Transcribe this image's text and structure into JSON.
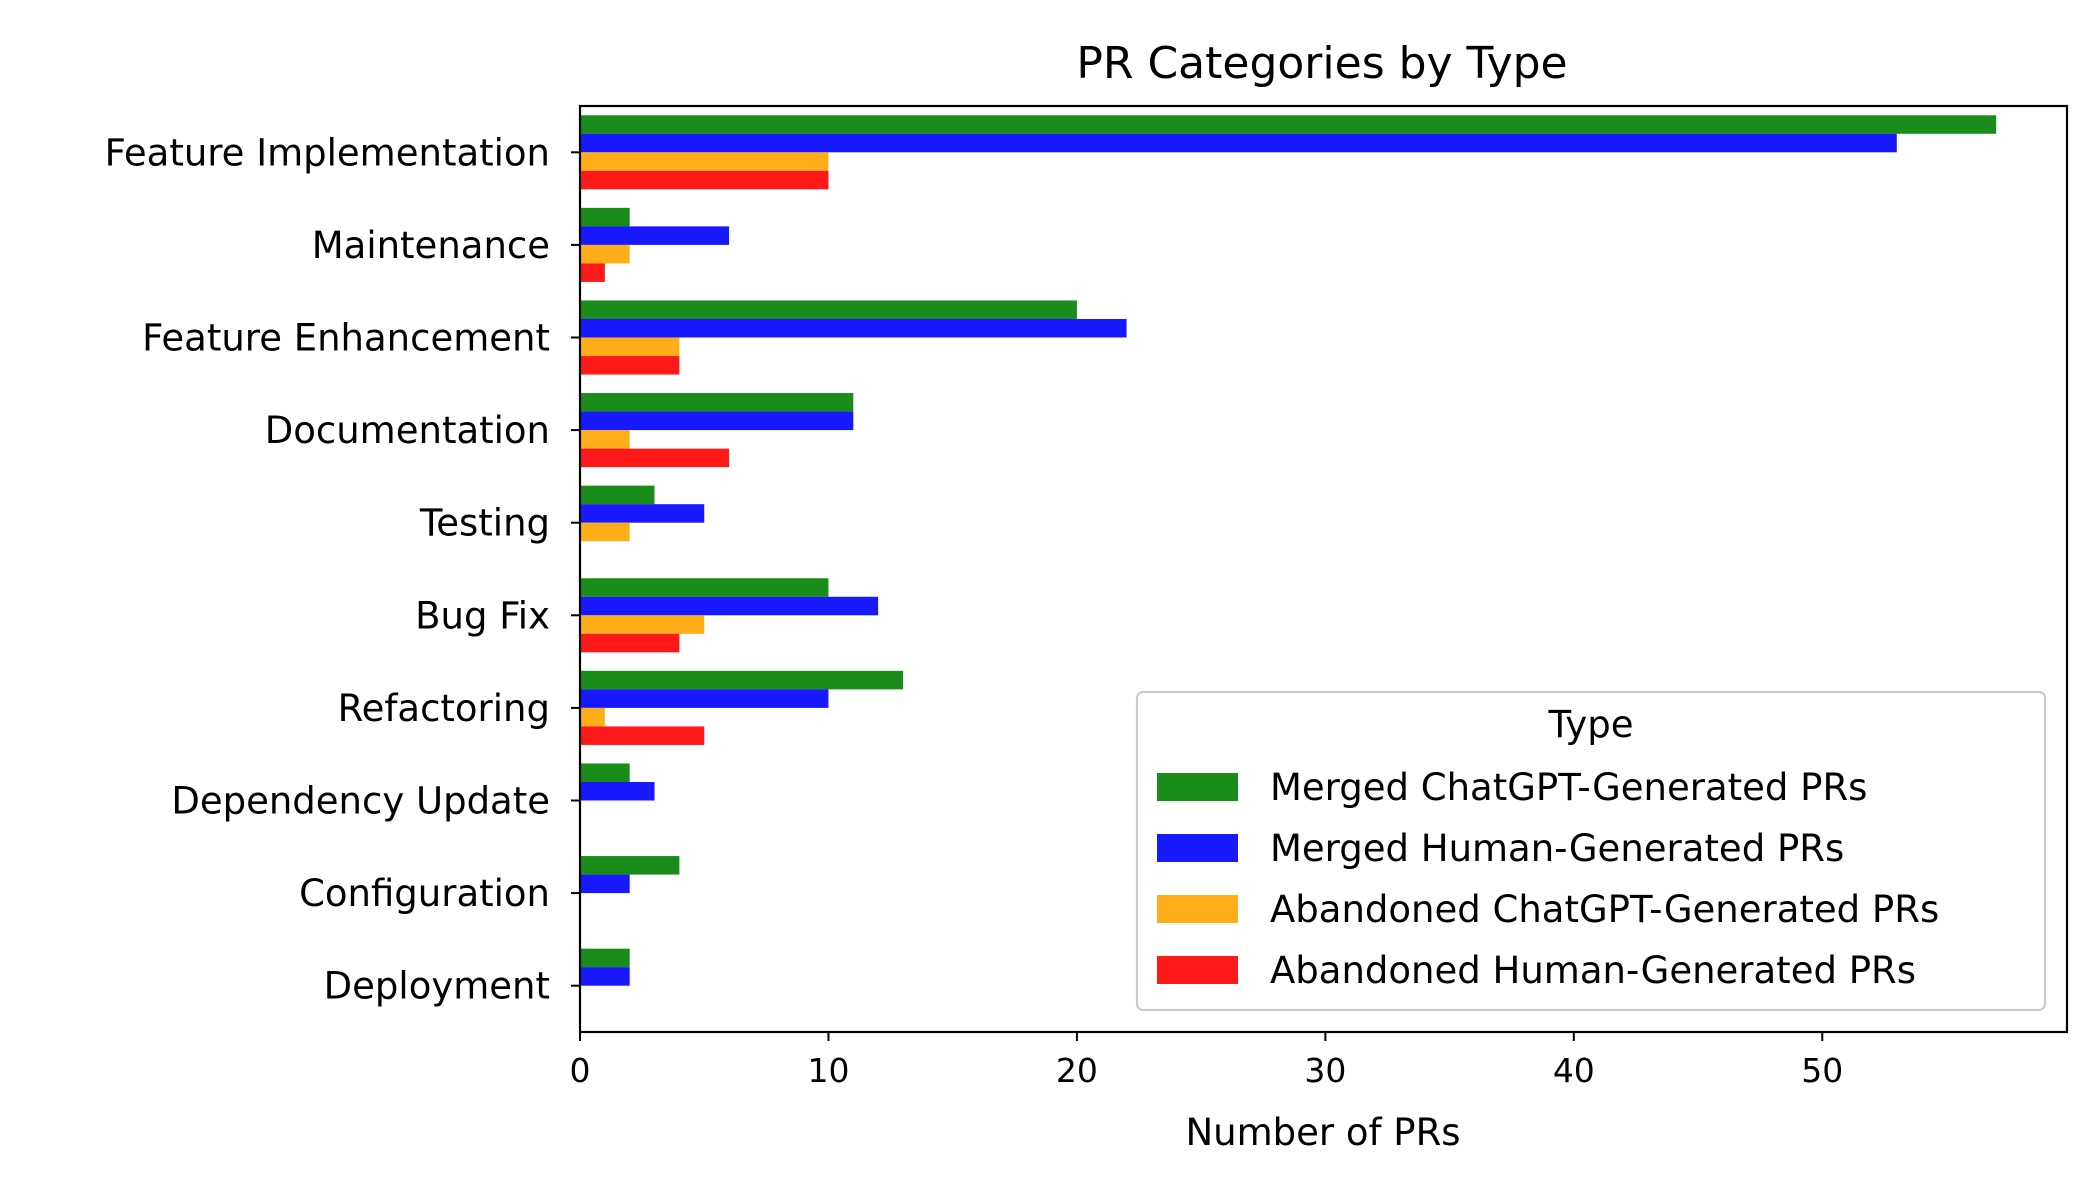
{
  "chart_data": {
    "type": "bar",
    "orientation": "horizontal",
    "title": "PR Categories by Type",
    "xlabel": "Number of PRs",
    "ylabel": "",
    "xlim": [
      0,
      59.85
    ],
    "xticks": [
      0,
      10,
      20,
      30,
      40,
      50
    ],
    "categories": [
      "Feature Implementation",
      "Maintenance",
      "Feature Enhancement",
      "Documentation",
      "Testing",
      "Bug Fix",
      "Refactoring",
      "Dependency Update",
      "Configuration",
      "Deployment"
    ],
    "series": [
      {
        "name": "Merged ChatGPT-Generated PRs",
        "color": "#008000",
        "values": [
          57,
          2,
          20,
          11,
          3,
          10,
          13,
          2,
          4,
          2
        ]
      },
      {
        "name": "Merged Human-Generated PRs",
        "color": "#0000ff",
        "values": [
          53,
          6,
          22,
          11,
          5,
          12,
          10,
          3,
          2,
          2
        ]
      },
      {
        "name": "Abandoned ChatGPT-Generated PRs",
        "color": "#ffa500",
        "values": [
          10,
          2,
          4,
          2,
          2,
          5,
          1,
          0,
          0,
          0
        ]
      },
      {
        "name": "Abandoned Human-Generated PRs",
        "color": "#ff0000",
        "values": [
          10,
          1,
          4,
          6,
          0,
          4,
          5,
          0,
          0,
          0
        ]
      }
    ],
    "legend": {
      "title": "Type",
      "placement": "lower-right"
    },
    "grid": false
  }
}
